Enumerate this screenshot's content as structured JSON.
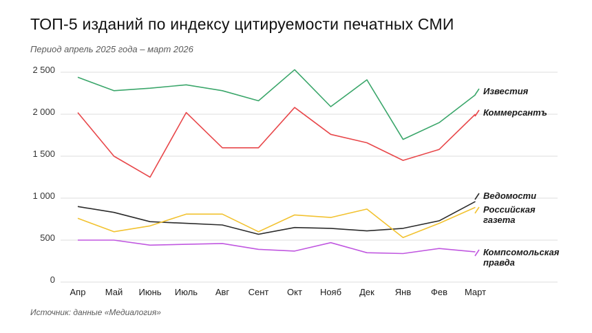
{
  "title": "ТОП-5 изданий по индексу цитируемости печатных СМИ",
  "subtitle": "Период апрель 2025 года – март 2026",
  "source": "Источник: данные «Медиалогия»",
  "chart_data": {
    "type": "line",
    "categories": [
      "Апр",
      "Май",
      "Июнь",
      "Июль",
      "Авг",
      "Сент",
      "Окт",
      "Нояб",
      "Дек",
      "Янв",
      "Фев",
      "Март"
    ],
    "yticks": [
      "0",
      "500",
      "1 000",
      "1 500",
      "2 000",
      "2 500"
    ],
    "ylim": [
      0,
      2500
    ],
    "grid": true,
    "legend_position": "right, next to line ends",
    "series": [
      {
        "name": "Известия",
        "legend_lines": [
          "Известия"
        ],
        "color": "#3aa66a",
        "values": [
          2440,
          2280,
          2310,
          2350,
          2280,
          2160,
          2530,
          2090,
          2410,
          1700,
          1900,
          2230
        ]
      },
      {
        "name": "Коммерсантъ",
        "legend_lines": [
          "Коммерсантъ"
        ],
        "color": "#e8474a",
        "values": [
          2020,
          1500,
          1250,
          2020,
          1600,
          1600,
          2080,
          1760,
          1660,
          1450,
          1580,
          2000
        ]
      },
      {
        "name": "Ведомости",
        "legend_lines": [
          "Ведомости"
        ],
        "color": "#2a2a2a",
        "values": [
          900,
          830,
          720,
          700,
          680,
          570,
          650,
          640,
          610,
          640,
          730,
          960
        ]
      },
      {
        "name": "Российская газета",
        "legend_lines": [
          "Российская",
          "газета"
        ],
        "color": "#f2c230",
        "values": [
          760,
          600,
          670,
          810,
          810,
          600,
          800,
          770,
          870,
          530,
          700,
          890
        ]
      },
      {
        "name": "Компсомольская правда",
        "legend_lines": [
          "Компсомольская",
          "правда"
        ],
        "color": "#c057e0",
        "values": [
          500,
          500,
          440,
          450,
          460,
          390,
          370,
          470,
          350,
          340,
          400,
          360
        ]
      }
    ]
  }
}
